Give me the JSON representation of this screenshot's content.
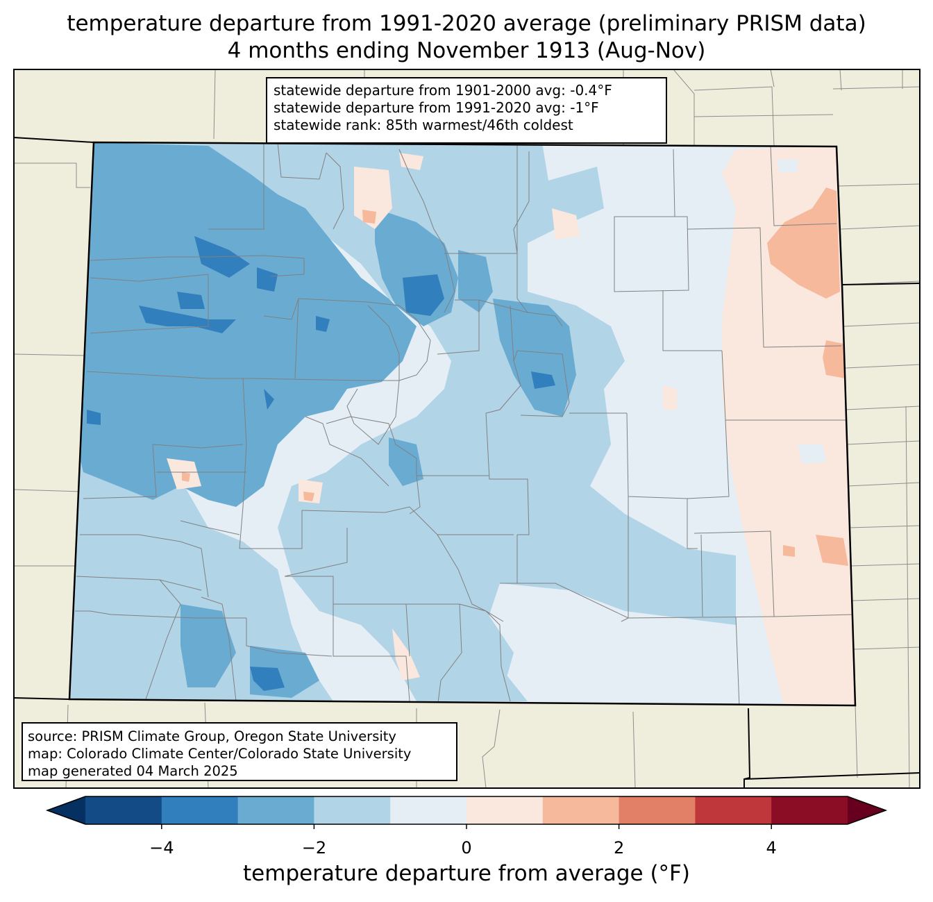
{
  "title": {
    "line1": "temperature departure from 1991-2020 average (preliminary PRISM data)",
    "line2": "4 months ending November 1913 (Aug-Nov)"
  },
  "stats": {
    "line1": "statewide departure from 1901-2000 avg: -0.4°F",
    "line2": "statewide departure from 1991-2020 avg: -1°F",
    "line3": "statewide rank: 85th warmest/46th coldest"
  },
  "source": {
    "line1": "source: PRISM Climate Group, Oregon State University",
    "line2": "map: Colorado Climate Center/Colorado State University",
    "line3": "map generated 04 March 2025"
  },
  "colors": {
    "land_background": "#efeedd",
    "bin_-5_-4": "#134b87",
    "bin_-4_-3": "#317fbc",
    "bin_-3_-2": "#6aabd2",
    "bin_-2_-1": "#b2d4e7",
    "bin_-1_0": "#e5eef5",
    "bin_0_1": "#fae7de",
    "bin_1_2": "#f6b99c",
    "bin_2_3": "#e18067",
    "bin_3_4": "#c0373b",
    "bin_4_5": "#8a0c25",
    "under": "#053061",
    "over": "#67001f"
  },
  "colorbar": {
    "label": "temperature departure from average (°F)",
    "ticks": [
      {
        "value": -4,
        "label": "−4"
      },
      {
        "value": -2,
        "label": "−2"
      },
      {
        "value": 0,
        "label": "0"
      },
      {
        "value": 2,
        "label": "2"
      },
      {
        "value": 4,
        "label": "4"
      }
    ],
    "range": [
      -5,
      5
    ],
    "extend": "both"
  }
}
